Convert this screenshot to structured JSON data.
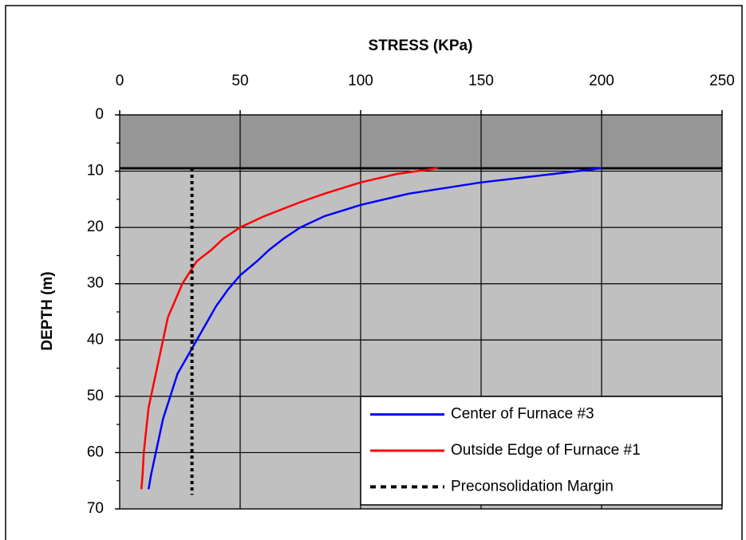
{
  "chart_data": {
    "type": "line",
    "xlabel": "STRESS  (KPa)",
    "ylabel": "DEPTH  (m)",
    "xlim": [
      0,
      250
    ],
    "xticks": [
      0,
      50,
      100,
      150,
      200,
      250
    ],
    "ylim": [
      0,
      70
    ],
    "yticks": [
      0,
      10,
      20,
      30,
      40,
      50,
      60,
      70
    ],
    "y_inverted": true,
    "x_axis_position": "top",
    "grid": true,
    "legend_position": "lower right",
    "bands": [
      {
        "from": 0,
        "to": 9.5,
        "color": "#969696"
      }
    ],
    "series": [
      {
        "name": "Center of Furnace #3",
        "color": "#0000ff",
        "style": "solid",
        "x": [
          200,
          150,
          120,
          100,
          85,
          75,
          68,
          62,
          57,
          50,
          45,
          40,
          36,
          32,
          28,
          24,
          21,
          18,
          16,
          14,
          13,
          12
        ],
        "values": [
          9.5,
          12,
          14,
          16,
          18,
          20,
          22,
          24,
          26,
          28.5,
          31,
          34,
          37,
          40,
          43,
          46,
          50,
          54,
          58,
          62,
          64,
          66.5
        ]
      },
      {
        "name": "Outside Edge of Furnace #1",
        "color": "#ff0000",
        "style": "solid",
        "x": [
          132,
          115,
          100,
          85,
          75,
          60,
          50,
          43,
          38,
          32,
          29,
          26,
          23,
          20,
          18,
          16,
          14,
          12,
          11,
          10,
          9.5,
          9
        ],
        "values": [
          9.5,
          10.5,
          12,
          14,
          15.5,
          18,
          20,
          22,
          24,
          26,
          28,
          30,
          33,
          36,
          40,
          44,
          48,
          52,
          56,
          60,
          64,
          66.5
        ]
      },
      {
        "name": "Preconsolidation Margin",
        "color": "#000000",
        "style": "dotted",
        "x": [
          30,
          30
        ],
        "values": [
          9.5,
          67.5
        ]
      }
    ]
  }
}
